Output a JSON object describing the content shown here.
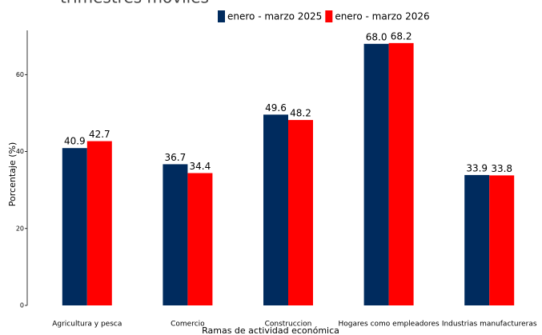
{
  "chart_data": {
    "type": "bar",
    "title": "trimestres móviles",
    "x_label": "Ramas de actividad económica",
    "y_label": "Porcentaje (%)",
    "categories": [
      "Agricultura y pesca",
      "Comercio",
      "Construccion",
      "Hogares como empleadores",
      "Industrias manufactureras"
    ],
    "series": [
      {
        "name": "enero - marzo 2025",
        "color": "#002b5e",
        "values": [
          40.9,
          36.7,
          49.6,
          68.0,
          33.9
        ],
        "value_labels": [
          "40.9",
          "36.7",
          "49.6",
          "68.0",
          "33.9"
        ]
      },
      {
        "name": "enero - marzo 2026",
        "color": "#ff0000",
        "values": [
          42.7,
          34.4,
          48.2,
          68.2,
          33.8
        ],
        "value_labels": [
          "42.7",
          "34.4",
          "48.2",
          "68.2",
          "33.8"
        ]
      }
    ],
    "ylim": [
      0,
      71.5
    ],
    "yticks": [
      0,
      20,
      40,
      60
    ],
    "legend": "top"
  }
}
